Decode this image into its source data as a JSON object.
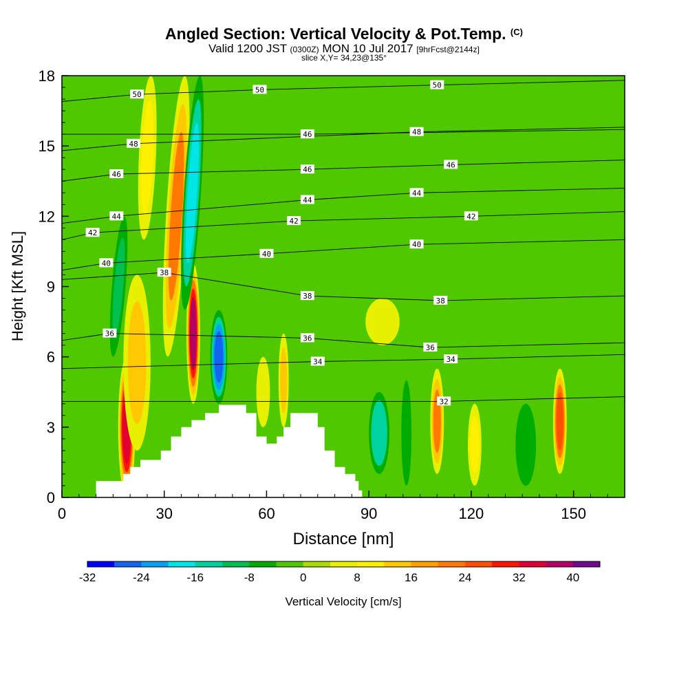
{
  "title": {
    "main": "Angled Section: Vertical Velocity & Pot.Temp.",
    "main_suffix": "(C)",
    "valid_prefix": "Valid 1200 JST",
    "valid_utc": "(0300Z)",
    "valid_date": "MON 10 Jul 2017",
    "forecast": "[9hrFcst@2144z]",
    "slice": "slice X,Y= 34,23@135°"
  },
  "chart_data": {
    "type": "heatmap",
    "xlabel": "Distance [nm]",
    "ylabel": "Height [Kft MSL]",
    "xlim": [
      0,
      165
    ],
    "ylim": [
      0,
      18
    ],
    "xticks": [
      0,
      30,
      60,
      90,
      120,
      150
    ],
    "yticks": [
      0,
      3,
      6,
      9,
      12,
      15,
      18
    ],
    "colorbar": {
      "label": "Vertical Velocity [cm/s]",
      "ticks": [
        -32,
        -24,
        -16,
        -8,
        0,
        8,
        16,
        24,
        32,
        40
      ],
      "min": -32,
      "max": 44,
      "step": 4,
      "colors": [
        "#0000ff",
        "#1464f0",
        "#0aa0f0",
        "#00e6e6",
        "#00d2a0",
        "#00c050",
        "#00ac00",
        "#50c800",
        "#aadc00",
        "#e6f000",
        "#fff000",
        "#ffc800",
        "#ffa000",
        "#ff7800",
        "#ff5000",
        "#ff1400",
        "#e10032",
        "#b40064",
        "#6e0a8c"
      ]
    },
    "terrain": [
      [
        10,
        0.7
      ],
      [
        16,
        0.7
      ],
      [
        18,
        1.0
      ],
      [
        20,
        1.3
      ],
      [
        23,
        1.6
      ],
      [
        26,
        1.6
      ],
      [
        29,
        2.0
      ],
      [
        32,
        2.6
      ],
      [
        35,
        3.0
      ],
      [
        38,
        3.3
      ],
      [
        42,
        3.6
      ],
      [
        46,
        3.95
      ],
      [
        50,
        3.95
      ],
      [
        54,
        3.6
      ],
      [
        57,
        2.6
      ],
      [
        60,
        2.3
      ],
      [
        63,
        2.6
      ],
      [
        65,
        3.0
      ],
      [
        67,
        3.6
      ],
      [
        72,
        3.6
      ],
      [
        75,
        3.0
      ],
      [
        77,
        2.0
      ],
      [
        80,
        1.3
      ],
      [
        83,
        1.0
      ],
      [
        86,
        0.7
      ],
      [
        87,
        0.3
      ],
      [
        88,
        0
      ]
    ],
    "bands": [
      {
        "x": 19,
        "z0": 0,
        "z1": 6,
        "wx": 2.5,
        "v": 34
      },
      {
        "x": 22,
        "z0": 2,
        "z1": 9.5,
        "wx": 4,
        "v": 16
      },
      {
        "x": 38.5,
        "z0": 4,
        "z1": 10,
        "wx": 2,
        "v": 38
      },
      {
        "x": 46,
        "z0": 4,
        "z1": 8,
        "wx": 2.5,
        "v": -30
      },
      {
        "x": 31,
        "z0": 6,
        "z1": 18,
        "wx": 3,
        "v": 22,
        "tilt": 0.42
      },
      {
        "x": 36,
        "z0": 8,
        "z1": 18,
        "wx": 2.5,
        "v": -22,
        "tilt": 0.45
      },
      {
        "x": 24,
        "z0": 11,
        "z1": 18,
        "wx": 2.5,
        "v": 12,
        "tilt": 0.3
      },
      {
        "x": 15,
        "z0": 6,
        "z1": 12,
        "wx": 2,
        "v": -12,
        "tilt": 0.55
      },
      {
        "x": 65,
        "z0": 3,
        "z1": 7,
        "wx": 1.5,
        "v": 14
      },
      {
        "x": 59,
        "z0": 3,
        "z1": 6,
        "wx": 2,
        "v": 8
      },
      {
        "x": 93,
        "z0": 1,
        "z1": 4.5,
        "wx": 3,
        "v": -18
      },
      {
        "x": 110,
        "z0": 1,
        "z1": 5.5,
        "wx": 2,
        "v": 24
      },
      {
        "x": 146,
        "z0": 1,
        "z1": 5.5,
        "wx": 2,
        "v": 26
      },
      {
        "x": 121,
        "z0": 0.5,
        "z1": 4,
        "wx": 2,
        "v": 12
      },
      {
        "x": 136,
        "z0": 0.5,
        "z1": 4,
        "wx": 3,
        "v": -10
      },
      {
        "x": 101,
        "z0": 0.5,
        "z1": 5,
        "wx": 1.5,
        "v": -8
      },
      {
        "x": 94,
        "z0": 6.5,
        "z1": 8.5,
        "wx": 5,
        "v": 8
      }
    ],
    "isentropes": [
      {
        "theta": 32,
        "label_at": [
          [
            112,
            4.1
          ]
        ]
      },
      {
        "theta": 34,
        "label_at": [
          [
            75,
            5.8
          ],
          [
            114,
            5.9
          ]
        ]
      },
      {
        "theta": 36,
        "label_at": [
          [
            14,
            7.0
          ],
          [
            72,
            6.8
          ],
          [
            108,
            6.4
          ]
        ]
      },
      {
        "theta": 38,
        "label_at": [
          [
            30,
            9.6
          ],
          [
            72,
            8.6
          ],
          [
            111,
            8.4
          ]
        ]
      },
      {
        "theta": 40,
        "label_at": [
          [
            13,
            10.0
          ],
          [
            60,
            10.4
          ],
          [
            104,
            10.8
          ]
        ]
      },
      {
        "theta": 42,
        "label_at": [
          [
            9,
            11.3
          ],
          [
            68,
            11.8
          ],
          [
            120,
            12.0
          ]
        ]
      },
      {
        "theta": 44,
        "label_at": [
          [
            16,
            12.0
          ],
          [
            72,
            12.7
          ],
          [
            104,
            13.0
          ]
        ]
      },
      {
        "theta": 46,
        "label_at": [
          [
            16,
            13.8
          ],
          [
            72,
            14.0
          ],
          [
            114,
            14.2
          ]
        ]
      },
      {
        "theta": 46,
        "label_at": [
          [
            72,
            15.5
          ]
        ]
      },
      {
        "theta": 48,
        "label_at": [
          [
            21,
            15.1
          ],
          [
            104,
            15.6
          ]
        ]
      },
      {
        "theta": 50,
        "label_at": [
          [
            22,
            17.2
          ],
          [
            58,
            17.4
          ],
          [
            110,
            17.6
          ]
        ]
      }
    ]
  }
}
